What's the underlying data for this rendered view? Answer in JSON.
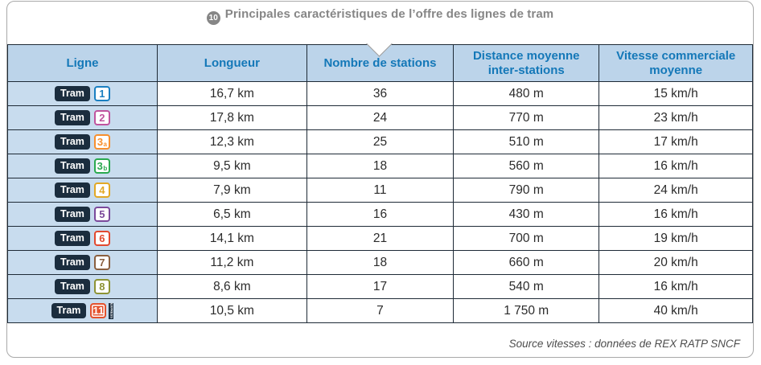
{
  "title": {
    "number": "10",
    "text": "Principales caractéristiques de l’offre des lignes de tram"
  },
  "table": {
    "headers": [
      "Ligne",
      "Longueur",
      "Nombre de stations",
      "Distance moyenne inter-stations",
      "Vitesse commerciale moyenne"
    ],
    "tram_label": "Tram",
    "express_label": "EXPRESS",
    "rows": [
      {
        "line_number": "1",
        "line_suffix": "",
        "line_color": "#1a7fc1",
        "filled": false,
        "express": false,
        "longueur": "16,7 km",
        "stations": "36",
        "distance_interstations": "480 m",
        "vitesse": "15 km/h"
      },
      {
        "line_number": "2",
        "line_suffix": "",
        "line_color": "#c0549e",
        "filled": false,
        "express": false,
        "longueur": "17,8 km",
        "stations": "24",
        "distance_interstations": "770 m",
        "vitesse": "23 km/h"
      },
      {
        "line_number": "3",
        "line_suffix": "a",
        "line_color": "#f78f2e",
        "filled": false,
        "express": false,
        "longueur": "12,3 km",
        "stations": "25",
        "distance_interstations": "510 m",
        "vitesse": "17 km/h"
      },
      {
        "line_number": "3",
        "line_suffix": "b",
        "line_color": "#2aa94f",
        "filled": false,
        "express": false,
        "longueur": "9,5 km",
        "stations": "18",
        "distance_interstations": "560 m",
        "vitesse": "16 km/h"
      },
      {
        "line_number": "4",
        "line_suffix": "",
        "line_color": "#e2a825",
        "filled": false,
        "express": false,
        "longueur": "7,9 km",
        "stations": "11",
        "distance_interstations": "790 m",
        "vitesse": "24 km/h"
      },
      {
        "line_number": "5",
        "line_suffix": "",
        "line_color": "#7b4a9b",
        "filled": false,
        "express": false,
        "longueur": "6,5 km",
        "stations": "16",
        "distance_interstations": "430 m",
        "vitesse": "16 km/h"
      },
      {
        "line_number": "6",
        "line_suffix": "",
        "line_color": "#e2492f",
        "filled": false,
        "express": false,
        "longueur": "14,1 km",
        "stations": "21",
        "distance_interstations": "700 m",
        "vitesse": "19 km/h"
      },
      {
        "line_number": "7",
        "line_suffix": "",
        "line_color": "#8a5f3f",
        "filled": false,
        "express": false,
        "longueur": "11,2 km",
        "stations": "18",
        "distance_interstations": "660 m",
        "vitesse": "20 km/h"
      },
      {
        "line_number": "8",
        "line_suffix": "",
        "line_color": "#8d9335",
        "filled": false,
        "express": false,
        "longueur": "8,6 km",
        "stations": "17",
        "distance_interstations": "540 m",
        "vitesse": "16 km/h"
      },
      {
        "line_number": "11",
        "line_suffix": "",
        "line_color": "#e4512c",
        "filled": true,
        "express": true,
        "longueur": "10,5 km",
        "stations": "7",
        "distance_interstations": "1 750 m",
        "vitesse": "40 km/h"
      }
    ]
  },
  "footer": {
    "source": "Source vitesses : données de REX RATP SNCF"
  },
  "colors": {
    "header_bg": "#bcd4ea",
    "row_line_bg": "#c8dcee",
    "header_text": "#1478b8",
    "tram_badge_bg": "#1b2d3e",
    "border": "#1e2a36",
    "panel_border": "#a9a9a9",
    "title_gray": "#868686"
  }
}
